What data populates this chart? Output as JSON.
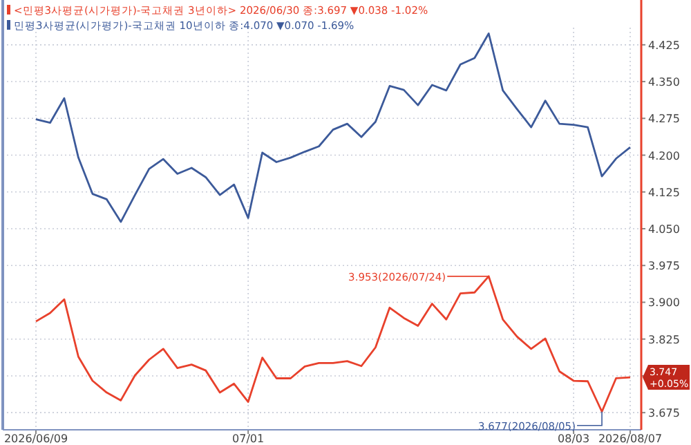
{
  "chart_data": {
    "type": "line",
    "categories": [
      "2026/06/09",
      null,
      null,
      null,
      null,
      null,
      null,
      null,
      null,
      null,
      null,
      null,
      null,
      null,
      null,
      "07/01",
      null,
      null,
      null,
      null,
      null,
      null,
      null,
      null,
      null,
      null,
      null,
      null,
      null,
      null,
      null,
      null,
      null,
      null,
      null,
      null,
      null,
      null,
      "08/03",
      null,
      null,
      null,
      "2026/08/07"
    ],
    "series": [
      {
        "name": "<민평3사평균(시가평가)-국고채권 3년이하> 2026/06/30 종:3.697 ▼0.038 -1.02%",
        "color": "#e8412c",
        "values": [
          3.861,
          3.878,
          3.906,
          3.789,
          3.74,
          3.716,
          3.7,
          3.751,
          3.783,
          3.805,
          3.766,
          3.773,
          3.761,
          3.716,
          3.734,
          3.697,
          3.787,
          3.745,
          3.745,
          3.769,
          3.776,
          3.776,
          3.78,
          3.77,
          3.808,
          3.889,
          3.868,
          3.852,
          3.897,
          3.865,
          3.918,
          3.92,
          3.953,
          3.865,
          3.83,
          3.805,
          3.826,
          3.759,
          3.74,
          3.739,
          3.677,
          3.745,
          3.747
        ]
      },
      {
        "name": "민평3사평균(시가평가)-국고채권 10년이하 종:4.070 ▼0.070 -1.69%",
        "color": "#3c5a9a",
        "values": [
          4.273,
          4.266,
          4.316,
          4.195,
          4.121,
          4.11,
          4.064,
          4.119,
          4.172,
          4.192,
          4.162,
          4.174,
          4.155,
          4.119,
          4.14,
          4.072,
          4.205,
          4.186,
          4.195,
          4.207,
          4.218,
          4.252,
          4.264,
          4.237,
          4.268,
          4.341,
          4.333,
          4.302,
          4.343,
          4.332,
          4.385,
          4.398,
          4.448,
          4.332,
          4.294,
          4.257,
          4.311,
          4.264,
          4.262,
          4.257,
          4.157,
          4.193,
          4.216
        ]
      }
    ],
    "ylim": [
      3.64,
      4.46
    ],
    "yticks": [
      3.675,
      {
        "value": 3.75,
        "label": null
      },
      3.825,
      {
        "value": 3.9,
        "label": "3.900"
      },
      3.975,
      {
        "value": 4.05,
        "label": "4.050"
      },
      4.125,
      {
        "value": 4.2,
        "label": "4.200"
      },
      4.275,
      {
        "value": 4.35,
        "label": "4.350"
      },
      4.425
    ],
    "grid": true,
    "legend": "top left",
    "annotations": [
      "3.953(2026/07/24)",
      "3.677(2026/08/05)",
      "3.747 +0.05%"
    ]
  }
}
